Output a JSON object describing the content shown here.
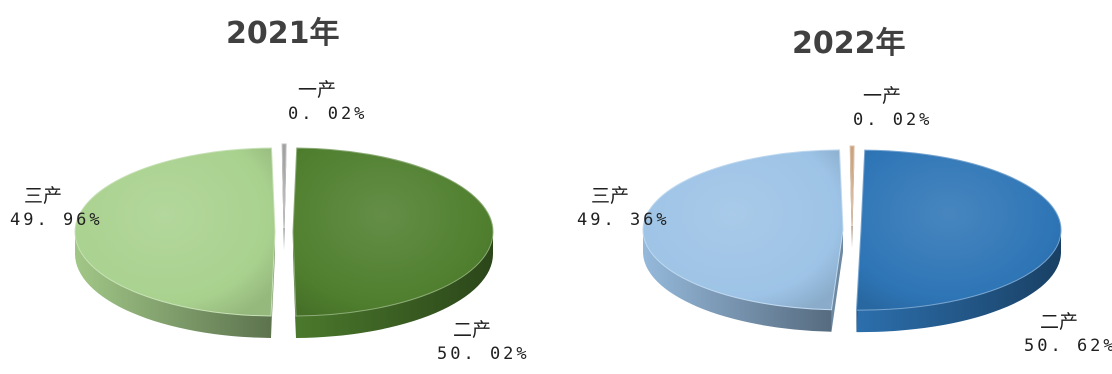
{
  "chart_data": [
    {
      "type": "pie",
      "title": "2021年",
      "slices": [
        {
          "name": "一产",
          "value": 0.02,
          "label": "0.02%",
          "color": "#9e9e9e"
        },
        {
          "name": "二产",
          "value": 50.02,
          "label": "50.02%",
          "color": "#4f7f2e"
        },
        {
          "name": "三产",
          "value": 49.96,
          "label": "49.96%",
          "color": "#a9d18e"
        }
      ]
    },
    {
      "type": "pie",
      "title": "2022年",
      "slices": [
        {
          "name": "一产",
          "value": 0.02,
          "label": "0.02%",
          "color": "#c8a07a"
        },
        {
          "name": "二产",
          "value": 50.62,
          "label": "50.62%",
          "color": "#2e75b6"
        },
        {
          "name": "三产",
          "value": 49.36,
          "label": "49.36%",
          "color": "#9dc3e6"
        }
      ]
    }
  ],
  "display": {
    "c2021": {
      "title": "2021年",
      "s1_name": "一产",
      "s1_pct": "0. 02%",
      "s2_name": "二产",
      "s2_pct": "50. 02%",
      "s3_name": "三产",
      "s3_pct": "49. 96%"
    },
    "c2022": {
      "title": "2022年",
      "s1_name": "一产",
      "s1_pct": "0. 02%",
      "s2_name": "二产",
      "s2_pct": "50. 62%",
      "s3_name": "三产",
      "s3_pct": "49. 36%"
    }
  }
}
